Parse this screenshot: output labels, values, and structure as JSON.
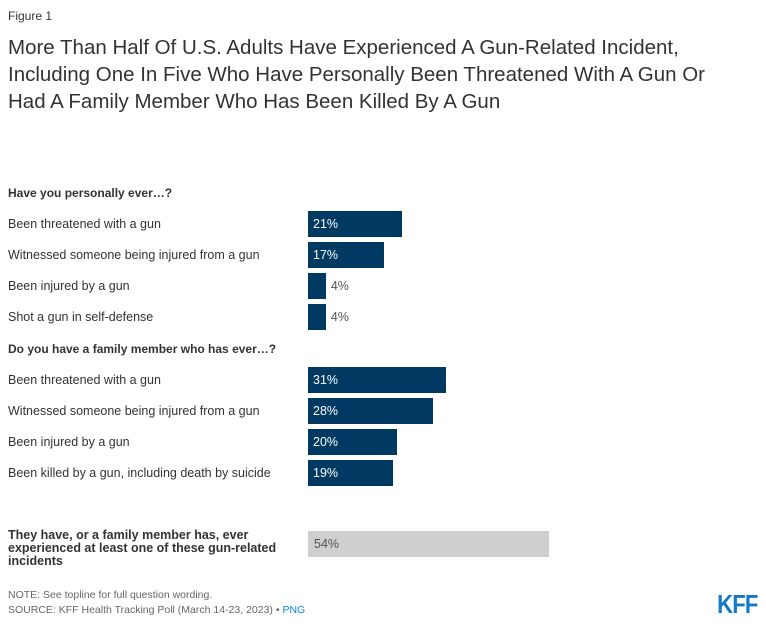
{
  "figure_label": "Figure 1",
  "chart_data": {
    "type": "bar",
    "title": "More Than Half Of U.S. Adults Have Experienced A Gun-Related Incident, Including One In Five Who Have Personally Been Threatened With A Gun Or Had A Family Member Who Has Been Killed By A Gun",
    "unit": "%",
    "xlim": [
      0,
      100
    ],
    "groups": [
      {
        "header": "Have you personally ever…?",
        "categories": [
          "Been threatened with a gun",
          "Witnessed someone being injured from a gun",
          "Been injured by a gun",
          "Shot a gun in self-defense"
        ],
        "values": [
          21,
          17,
          4,
          4
        ],
        "labels": [
          "21%",
          "17%",
          "4%",
          "4%"
        ]
      },
      {
        "header": "Do you have a family member who has ever…?",
        "categories": [
          "Been threatened with a gun",
          "Witnessed someone being injured from a gun",
          "Been injured by a gun",
          "Been killed by a gun, including death by suicide"
        ],
        "values": [
          31,
          28,
          20,
          19
        ],
        "labels": [
          "31%",
          "28%",
          "20%",
          "19%"
        ]
      }
    ],
    "total": {
      "category": "They have, or a family member has, ever experienced at least one of these gun-related incidents",
      "value": 54,
      "label": "54%"
    },
    "colors": {
      "bar": "#003a63",
      "total": "#cfcfcf"
    }
  },
  "footer": {
    "note": "NOTE: See topline for full question wording.",
    "source": "SOURCE: KFF Health Tracking Poll (March 14-23, 2023) •",
    "png_link": "PNG",
    "logo": "KFF"
  }
}
